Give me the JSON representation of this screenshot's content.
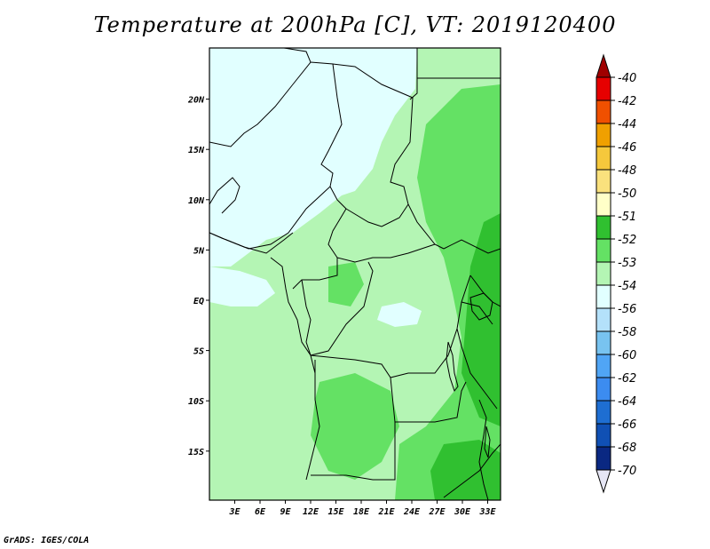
{
  "title": "Temperature at 200hPa [C], VT: 2019120400",
  "credit": "GrADS: IGES/COLA",
  "y_ticks": [
    {
      "label": "20N",
      "lat": 20
    },
    {
      "label": "15N",
      "lat": 15
    },
    {
      "label": "10N",
      "lat": 10
    },
    {
      "label": "5N",
      "lat": 5
    },
    {
      "label": "EQ",
      "lat": 0
    },
    {
      "label": "5S",
      "lat": -5
    },
    {
      "label": "10S",
      "lat": -10
    },
    {
      "label": "15S",
      "lat": -15
    }
  ],
  "x_ticks": [
    {
      "label": "3E",
      "lon": 3
    },
    {
      "label": "6E",
      "lon": 6
    },
    {
      "label": "9E",
      "lon": 9
    },
    {
      "label": "12E",
      "lon": 12
    },
    {
      "label": "15E",
      "lon": 15
    },
    {
      "label": "18E",
      "lon": 18
    },
    {
      "label": "21E",
      "lon": 21
    },
    {
      "label": "24E",
      "lon": 24
    },
    {
      "label": "27E",
      "lon": 27
    },
    {
      "label": "30E",
      "lon": 30
    },
    {
      "label": "33E",
      "lon": 33
    }
  ],
  "colorbar": [
    {
      "label": "-40",
      "color": "#a00000"
    },
    {
      "label": "-42",
      "color": "#e60000"
    },
    {
      "label": "-44",
      "color": "#f05000"
    },
    {
      "label": "-46",
      "color": "#f0a000"
    },
    {
      "label": "-48",
      "color": "#f5c83c"
    },
    {
      "label": "-50",
      "color": "#fae17d"
    },
    {
      "label": "-51",
      "color": "#ffffc8"
    },
    {
      "label": "-52",
      "color": "#30c030"
    },
    {
      "label": "-53",
      "color": "#64e164"
    },
    {
      "label": "-54",
      "color": "#b4f5b4"
    },
    {
      "label": "-56",
      "color": "#e1ffff"
    },
    {
      "label": "-58",
      "color": "#b4e1fa"
    },
    {
      "label": "-60",
      "color": "#78c3f0"
    },
    {
      "label": "-62",
      "color": "#50a5f5"
    },
    {
      "label": "-64",
      "color": "#3c8cf0"
    },
    {
      "label": "-66",
      "color": "#1e6ed2"
    },
    {
      "label": "-68",
      "color": "#1050b4"
    },
    {
      "label": "-70",
      "color": "#0a2882"
    }
  ],
  "colorbar_low_color": "#e6e6f5"
}
